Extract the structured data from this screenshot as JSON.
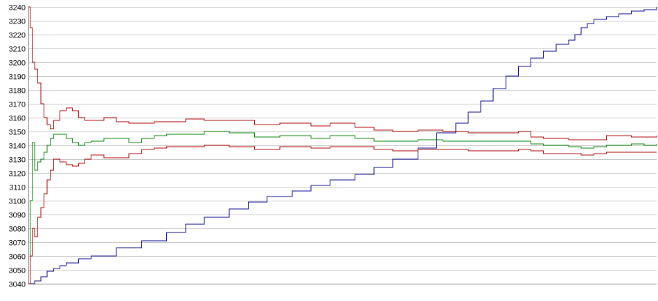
{
  "chart_data": {
    "type": "line",
    "title": "",
    "xlabel": "",
    "ylabel": "",
    "ylim": [
      3040,
      3240
    ],
    "yticks": [
      3040,
      3050,
      3060,
      3070,
      3080,
      3090,
      3100,
      3110,
      3120,
      3130,
      3140,
      3150,
      3160,
      3170,
      3180,
      3190,
      3200,
      3210,
      3220,
      3230,
      3240
    ],
    "grid": true,
    "legend": "none",
    "x_range": [
      0,
      100
    ],
    "series": [
      {
        "color": "#00008b",
        "x": [
          0,
          1,
          2,
          3,
          4,
          5,
          6,
          8,
          10,
          14,
          18,
          22,
          25,
          28,
          32,
          35,
          38,
          42,
          45,
          48,
          52,
          55,
          58,
          62,
          65,
          68,
          70,
          72,
          74,
          76,
          78,
          80,
          82,
          84,
          86,
          87,
          88,
          89,
          90,
          92,
          94,
          96,
          98,
          100
        ],
        "y": [
          3040,
          3042,
          3045,
          3049,
          3051,
          3053,
          3055,
          3058,
          3060,
          3066,
          3071,
          3077,
          3083,
          3088,
          3094,
          3099,
          3103,
          3107,
          3111,
          3115,
          3119,
          3124,
          3130,
          3138,
          3149,
          3156,
          3164,
          3172,
          3181,
          3190,
          3197,
          3203,
          3208,
          3213,
          3216,
          3220,
          3225,
          3228,
          3231,
          3233,
          3235,
          3237,
          3238,
          3240
        ]
      },
      {
        "color": "#aa0000",
        "x": [
          0,
          0.3,
          0.6,
          1,
          1.5,
          2,
          2.5,
          3,
          3.5,
          4,
          5,
          6,
          7,
          8,
          9,
          10,
          12,
          14,
          16,
          18,
          20,
          22,
          25,
          28,
          32,
          36,
          40,
          42,
          45,
          48,
          52,
          55,
          58,
          62,
          66,
          70,
          74,
          78,
          80,
          82,
          86,
          88,
          90,
          92,
          94,
          96,
          98,
          100
        ],
        "y": [
          3240,
          3225,
          3200,
          3195,
          3185,
          3170,
          3160,
          3155,
          3152,
          3158,
          3165,
          3167,
          3165,
          3160,
          3158,
          3158,
          3160,
          3157,
          3156,
          3156,
          3157,
          3157,
          3159,
          3158,
          3158,
          3155,
          3156,
          3156,
          3154,
          3156,
          3153,
          3151,
          3150,
          3151,
          3150,
          3149,
          3149,
          3150,
          3146,
          3145,
          3144,
          3144,
          3144,
          3147,
          3147,
          3146,
          3146,
          3147
        ]
      },
      {
        "color": "#008000",
        "x": [
          0,
          0.3,
          0.6,
          1,
          1.5,
          2,
          2.5,
          3,
          3.5,
          4,
          5,
          6,
          7,
          8,
          9,
          10,
          12,
          14,
          16,
          18,
          20,
          22,
          25,
          28,
          32,
          36,
          40,
          42,
          45,
          48,
          52,
          55,
          58,
          62,
          66,
          70,
          74,
          78,
          80,
          82,
          86,
          88,
          90,
          92,
          94,
          96,
          98,
          100
        ],
        "y": [
          3040,
          3100,
          3142,
          3122,
          3128,
          3130,
          3135,
          3140,
          3145,
          3148,
          3148,
          3145,
          3142,
          3140,
          3142,
          3143,
          3145,
          3145,
          3142,
          3145,
          3147,
          3148,
          3148,
          3150,
          3149,
          3146,
          3147,
          3147,
          3145,
          3147,
          3145,
          3143,
          3143,
          3144,
          3143,
          3143,
          3143,
          3143,
          3141,
          3140,
          3139,
          3138,
          3139,
          3140,
          3140,
          3141,
          3140,
          3141
        ]
      },
      {
        "color": "#aa0000",
        "x": [
          0,
          0.3,
          0.6,
          1,
          1.5,
          2,
          2.5,
          3,
          3.5,
          4,
          5,
          6,
          7,
          8,
          9,
          10,
          12,
          14,
          16,
          18,
          20,
          22,
          25,
          28,
          32,
          36,
          40,
          42,
          45,
          48,
          52,
          55,
          58,
          62,
          66,
          70,
          74,
          78,
          80,
          82,
          86,
          88,
          90,
          92,
          94,
          96,
          98,
          100
        ],
        "y": [
          3040,
          3060,
          3080,
          3074,
          3088,
          3095,
          3105,
          3115,
          3122,
          3130,
          3128,
          3126,
          3125,
          3127,
          3130,
          3133,
          3131,
          3131,
          3134,
          3137,
          3138,
          3139,
          3139,
          3140,
          3139,
          3137,
          3139,
          3139,
          3138,
          3139,
          3139,
          3137,
          3136,
          3137,
          3137,
          3136,
          3136,
          3137,
          3136,
          3134,
          3134,
          3133,
          3134,
          3135,
          3135,
          3135,
          3135,
          3135
        ]
      }
    ]
  }
}
